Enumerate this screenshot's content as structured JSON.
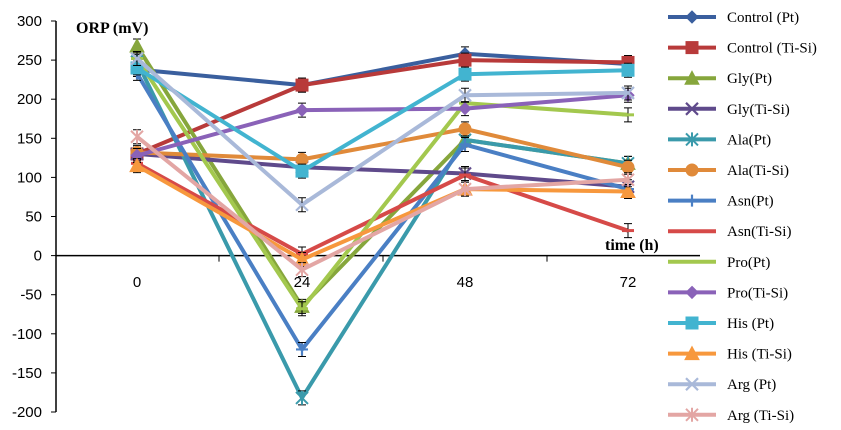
{
  "chart_data": {
    "type": "line",
    "ylabel": "ORP (mV)",
    "xlabel": "time (h)",
    "categories": [
      "0",
      "24",
      "48",
      "72"
    ],
    "x": [
      0,
      24,
      48,
      72
    ],
    "ylim": [
      -200,
      300
    ],
    "yticks": [
      300,
      250,
      200,
      150,
      100,
      50,
      0,
      -50,
      -100,
      -150,
      -200
    ],
    "error_bars": true,
    "legend_position": "right",
    "series": [
      {
        "name": "Control (Pt)",
        "values": [
          238,
          218,
          258,
          245
        ],
        "color": "#3a5f9e",
        "marker": "diamond"
      },
      {
        "name": "Control (Ti-Si)",
        "values": [
          130,
          218,
          250,
          247
        ],
        "color": "#b83a3a",
        "marker": "square"
      },
      {
        "name": "Gly(Pt)",
        "values": [
          268,
          -65,
          148,
          118
        ],
        "color": "#86a63c",
        "marker": "triangle"
      },
      {
        "name": "Gly(Ti-Si)",
        "values": [
          130,
          113,
          105,
          88
        ],
        "color": "#5f4a8b",
        "marker": "x"
      },
      {
        "name": "Ala(Pt)",
        "values": [
          248,
          -182,
          148,
          118
        ],
        "color": "#3a9aab",
        "marker": "asterisk"
      },
      {
        "name": "Ala(Ti-Si)",
        "values": [
          132,
          123,
          162,
          113
        ],
        "color": "#e08a3a",
        "marker": "circle"
      },
      {
        "name": "Asn(Pt)",
        "values": [
          233,
          -120,
          142,
          85
        ],
        "color": "#4a7fc4",
        "marker": "plus"
      },
      {
        "name": "Asn(Ti-Si)",
        "values": [
          118,
          2,
          103,
          32
        ],
        "color": "#d64a48",
        "marker": "dash"
      },
      {
        "name": "Pro(Pt)",
        "values": [
          252,
          -68,
          195,
          180
        ],
        "color": "#a3c84e",
        "marker": "dash"
      },
      {
        "name": "Pro(Ti-Si)",
        "values": [
          128,
          186,
          188,
          205
        ],
        "color": "#8a62b8",
        "marker": "diamond"
      },
      {
        "name": "His (Pt)",
        "values": [
          240,
          108,
          232,
          237
        ],
        "color": "#42b4d0",
        "marker": "square"
      },
      {
        "name": "His (Ti-Si)",
        "values": [
          115,
          -5,
          85,
          82
        ],
        "color": "#f7983d",
        "marker": "triangle"
      },
      {
        "name": "Arg (Pt)",
        "values": [
          252,
          65,
          205,
          208
        ],
        "color": "#a9b9d9",
        "marker": "x"
      },
      {
        "name": "Arg (Ti-Si)",
        "values": [
          152,
          -18,
          85,
          97
        ],
        "color": "#e3a6a4",
        "marker": "asterisk"
      }
    ]
  }
}
